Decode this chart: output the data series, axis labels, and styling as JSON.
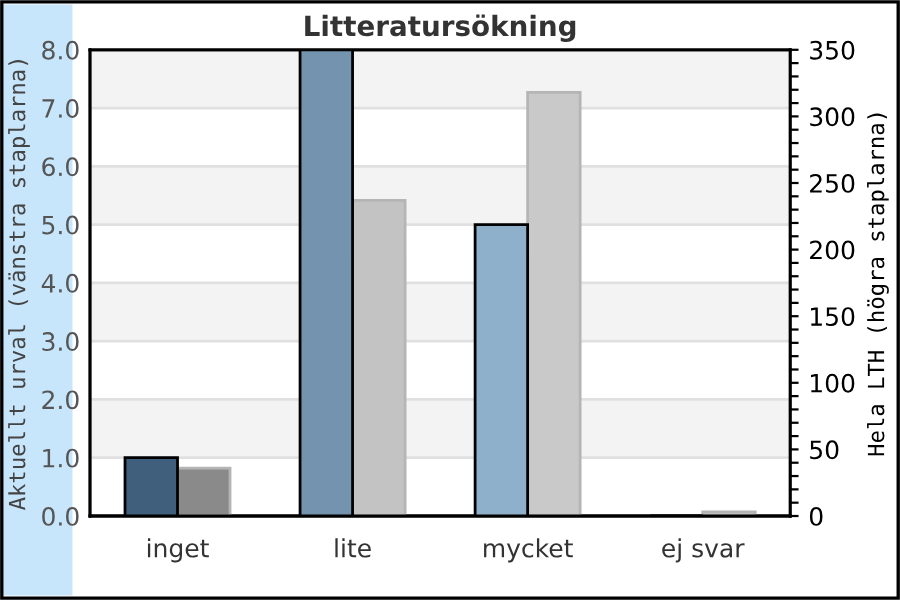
{
  "chart_data": {
    "type": "bar",
    "title": "Litteratursökning",
    "ylabel": "Aktuellt urval (vänstra staplarna)",
    "y2label": "Hela LTH (högra staplarna)",
    "categories": [
      "inget",
      "lite",
      "mycket",
      "ej svar"
    ],
    "series": [
      {
        "colors": [
          "#3f5f7c",
          "#7393ae",
          "#8fb0cb",
          "#8fb0cb"
        ],
        "values": [
          1,
          8,
          5,
          0
        ]
      },
      {
        "colors": [
          "#8a8a8a",
          "#c3c3c3",
          "#c9c9c9",
          "#c9c9c9"
        ],
        "values": [
          36,
          237,
          318,
          3
        ],
        "axis": "y2"
      }
    ],
    "ylim": [
      0,
      8
    ],
    "yticks": [
      {
        "value": 0,
        "label": "0.0"
      },
      {
        "value": 1,
        "label": "1.0"
      },
      {
        "value": 2,
        "label": "2.0"
      },
      {
        "value": 3,
        "label": "3.0"
      },
      {
        "value": 4,
        "label": "4.0"
      },
      {
        "value": 5,
        "label": "5.0"
      },
      {
        "value": 6,
        "label": "6.0"
      },
      {
        "value": 7,
        "label": "7.0"
      },
      {
        "value": 8,
        "label": "8.0"
      }
    ],
    "y2lim": [
      0,
      350
    ],
    "y2ticks": [
      0,
      {
        "value": 10,
        "label": null
      },
      {
        "value": 20,
        "label": null
      },
      {
        "value": 30,
        "label": null
      },
      {
        "value": 40,
        "label": null
      },
      50,
      {
        "value": 60,
        "label": null
      },
      {
        "value": 70,
        "label": null
      },
      {
        "value": 80,
        "label": null
      },
      {
        "value": 90,
        "label": null
      },
      100,
      {
        "value": 110,
        "label": null
      },
      {
        "value": 120,
        "label": null
      },
      {
        "value": 130,
        "label": null
      },
      {
        "value": 140,
        "label": null
      },
      150,
      {
        "value": 160,
        "label": null
      },
      {
        "value": 170,
        "label": null
      },
      {
        "value": 180,
        "label": null
      },
      {
        "value": 190,
        "label": null
      },
      200,
      {
        "value": 210,
        "label": null
      },
      {
        "value": 220,
        "label": null
      },
      {
        "value": 230,
        "label": null
      },
      {
        "value": 240,
        "label": null
      },
      250,
      {
        "value": 260,
        "label": null
      },
      {
        "value": 270,
        "label": null
      },
      {
        "value": 280,
        "label": null
      },
      {
        "value": 290,
        "label": null
      },
      300,
      {
        "value": 310,
        "label": null
      },
      {
        "value": 320,
        "label": null
      },
      {
        "value": 330,
        "label": null
      },
      {
        "value": 340,
        "label": null
      },
      350
    ],
    "bands": [
      {
        "axis": "y",
        "from": 1,
        "to": 2,
        "color": "#f3f3f3"
      },
      {
        "axis": "y",
        "from": 3,
        "to": 4,
        "color": "#f3f3f3"
      },
      {
        "axis": "y",
        "from": 5,
        "to": 6,
        "color": "#f3f3f3"
      },
      {
        "axis": "y",
        "from": 7,
        "to": 8,
        "color": "#f3f3f3"
      }
    ],
    "grid": "y",
    "legend": false
  }
}
